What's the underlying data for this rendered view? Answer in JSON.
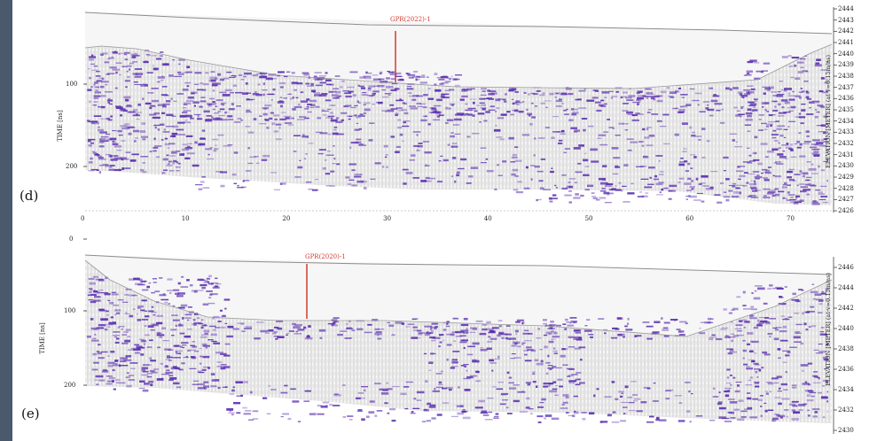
{
  "chart_data": [
    {
      "type": "heatmap",
      "panel_label": "(d)",
      "ylabel": "TIME [ns]",
      "y_right_label": "ELEVATION [METER] (at v=0.15m/ns)",
      "marker_label": "GPR(2022)-1",
      "time_ticks": [
        "100",
        "200"
      ],
      "elevation_ticks": [
        "2444",
        "2443",
        "2442",
        "2441",
        "2440",
        "2439",
        "2438",
        "2437",
        "2436",
        "2435",
        "2434",
        "2433",
        "2432",
        "2431",
        "2430",
        "2429",
        "2428",
        "2427",
        "2426"
      ],
      "distance_ticks": [
        "0",
        "10",
        "20",
        "30",
        "40",
        "50",
        "60",
        "70"
      ],
      "colors": {
        "reflection": "#5a2fb0",
        "marker": "#d43c2e"
      }
    },
    {
      "type": "heatmap",
      "panel_label": "(e)",
      "ylabel": "TIME [ns]",
      "y_right_label": "ELEVATION [METER] (at v=0.15m/ns)",
      "marker_label": "GPR(2020)-1",
      "time_ticks": [
        "0",
        "100",
        "200"
      ],
      "elevation_ticks": [
        "2446",
        "2444",
        "2442",
        "2440",
        "2438",
        "2436",
        "2434",
        "2432",
        "2430"
      ],
      "colors": {
        "reflection": "#5a2fb0",
        "marker": "#d43c2e"
      }
    }
  ]
}
